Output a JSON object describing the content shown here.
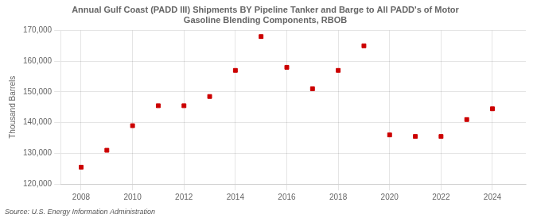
{
  "chart_data": {
    "type": "scatter",
    "title": "Annual Gulf Coast (PADD III) Shipments BY Pipeline Tanker and Barge to All PADD's of Motor\nGasoline Blending Components, RBOB",
    "ylabel": "Thousand Barrels",
    "annotations": [
      "Source: U.S. Energy Information Administration"
    ],
    "x": [
      2008,
      2009,
      2010,
      2011,
      2012,
      2013,
      2014,
      2015,
      2016,
      2017,
      2018,
      2019,
      2020,
      2021,
      2022,
      2023,
      2024
    ],
    "values": [
      125500,
      131000,
      139000,
      145500,
      145500,
      148500,
      157000,
      168000,
      158000,
      151000,
      157000,
      165000,
      136000,
      135500,
      135500,
      141000,
      144500
    ],
    "color": "#cc0000",
    "marker": "square",
    "xlim": [
      2007.2,
      2025.3
    ],
    "xticks": [
      2008,
      2010,
      2012,
      2014,
      2016,
      2018,
      2020,
      2022,
      2024
    ],
    "ylim": [
      120000,
      170000
    ],
    "yticks": [
      {
        "value": 120000,
        "label": "120,000"
      },
      {
        "value": 130000,
        "label": "130,000"
      },
      {
        "value": 140000,
        "label": "140,000"
      },
      {
        "value": 150000,
        "label": "150,000"
      },
      {
        "value": 160000,
        "label": "160,000"
      },
      {
        "value": 170000,
        "label": "170,000"
      }
    ],
    "grid": true
  }
}
